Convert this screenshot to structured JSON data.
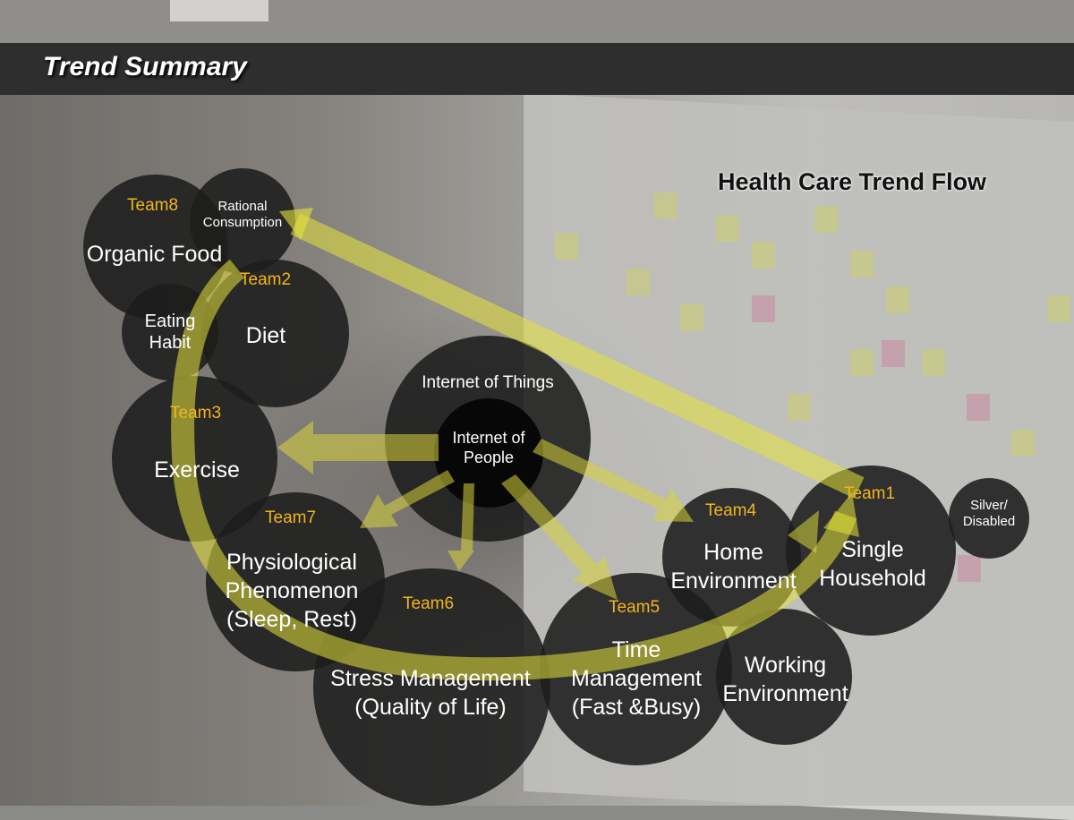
{
  "header": {
    "title": "Trend Summary"
  },
  "diagram": {
    "title": "Health Care Trend Flow",
    "center": {
      "outer": "Internet of Things",
      "inner": "Internet of\nPeople"
    },
    "nodes": {
      "organic_food": "Organic Food",
      "rational_consumption": "Rational\nConsumption",
      "eating_habit": "Eating\nHabit",
      "diet": "Diet",
      "exercise": "Exercise",
      "physiological": "Physiological\nPhenomenon\n(Sleep, Rest)",
      "stress": "Stress Management\n(Quality of Life)",
      "time": "Time\nManagement\n(Fast &Busy)",
      "working": "Working\nEnvironment",
      "home": "Home\nEnvironment",
      "single": "Single\nHousehold",
      "silver": "Silver/\nDisabled"
    },
    "teams": {
      "team1": "Team1",
      "team2": "Team2",
      "team3": "Team3",
      "team4": "Team4",
      "team5": "Team5",
      "team6": "Team6",
      "team7": "Team7",
      "team8": "Team8"
    },
    "colors": {
      "team_label": "#f2b51d",
      "flow_arrow": "#e6e33a",
      "circle_fill": "#1c1c1c"
    }
  }
}
